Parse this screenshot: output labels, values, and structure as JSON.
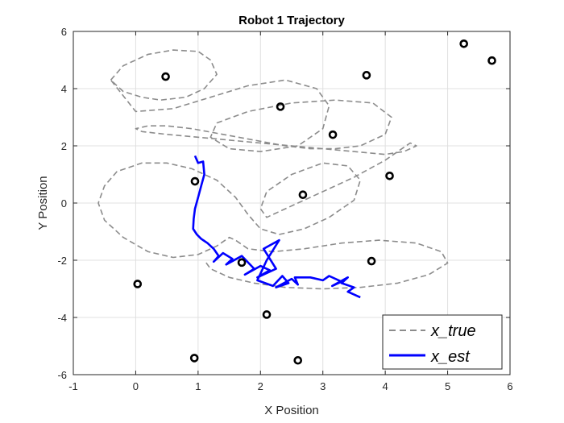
{
  "chart_data": {
    "type": "line",
    "title": "Robot 1 Trajectory",
    "xlabel": "X Position",
    "ylabel": "Y Position",
    "xlim": [
      -1,
      6
    ],
    "ylim": [
      -6,
      6
    ],
    "xticks": [
      -1,
      0,
      1,
      2,
      3,
      4,
      5,
      6
    ],
    "yticks": [
      -6,
      -4,
      -2,
      0,
      2,
      4,
      6
    ],
    "grid": true,
    "legend_position": "bottom-right",
    "colors": {
      "true": "#8c8c8c",
      "est": "#0000ff",
      "landmark": "#000000",
      "grid": "#e0e0e0",
      "axis": "#262626"
    },
    "landmarks": {
      "name": "landmarks",
      "x": [
        0.48,
        2.32,
        3.7,
        5.26,
        5.71,
        3.16,
        0.95,
        2.68,
        4.07,
        1.7,
        3.78,
        0.03,
        2.1,
        0.94,
        2.6
      ],
      "y": [
        4.42,
        3.37,
        4.47,
        5.57,
        4.98,
        2.39,
        0.76,
        0.29,
        0.95,
        -2.08,
        -2.03,
        -2.83,
        -3.9,
        -5.42,
        -5.5
      ]
    },
    "series": [
      {
        "name": "x_true",
        "style": "dashed",
        "x": [
          -0.4,
          -0.2,
          0.2,
          0.6,
          1.0,
          1.2,
          1.3,
          1.1,
          0.8,
          0.4,
          0.1,
          -0.2,
          -0.4,
          0.0,
          0.6,
          1.2,
          1.8,
          2.4,
          2.9,
          3.1,
          3.0,
          2.6,
          2.0,
          1.5,
          1.2,
          1.3,
          1.8,
          2.5,
          3.2,
          3.8,
          4.1,
          4.0,
          3.6,
          3.2,
          2.8,
          2.4,
          1.9,
          1.4,
          0.9,
          0.5,
          0.2,
          0.0,
          0.1,
          0.5,
          1.0,
          1.5,
          2.0,
          2.5,
          3.0,
          3.5,
          4.0,
          4.3,
          4.5,
          4.4,
          4.0,
          3.5,
          3.0,
          2.6,
          2.3,
          2.1,
          2.0,
          2.1,
          2.5,
          3.0,
          3.4,
          3.6,
          3.5,
          3.1,
          2.7,
          2.3,
          2.0,
          1.8,
          1.6,
          1.3,
          0.9,
          0.5,
          0.1,
          -0.3,
          -0.5,
          -0.6,
          -0.5,
          -0.2,
          0.2,
          0.6,
          1.0,
          1.3,
          1.5,
          1.6,
          1.8,
          2.2,
          2.7,
          3.3,
          3.9,
          4.5,
          4.9,
          5.0,
          4.7,
          4.2,
          3.6,
          3.0,
          2.4,
          1.9,
          1.5,
          1.2,
          1.1
        ],
        "y": [
          4.3,
          4.8,
          5.2,
          5.35,
          5.3,
          5.0,
          4.5,
          4.0,
          3.7,
          3.6,
          3.7,
          3.9,
          4.3,
          3.2,
          3.3,
          3.7,
          4.1,
          4.3,
          4.0,
          3.4,
          2.6,
          2.0,
          1.8,
          1.9,
          2.3,
          2.8,
          3.2,
          3.5,
          3.6,
          3.5,
          3.0,
          2.4,
          2.0,
          1.9,
          1.9,
          2.0,
          2.2,
          2.4,
          2.6,
          2.7,
          2.7,
          2.6,
          2.5,
          2.4,
          2.3,
          2.2,
          2.1,
          2.0,
          1.9,
          1.8,
          1.7,
          1.8,
          2.0,
          2.1,
          1.5,
          0.9,
          0.4,
          0.0,
          -0.3,
          -0.5,
          -0.2,
          0.4,
          1.0,
          1.4,
          1.3,
          0.8,
          0.1,
          -0.5,
          -0.9,
          -1.1,
          -0.9,
          -0.4,
          0.2,
          0.8,
          1.2,
          1.4,
          1.4,
          1.1,
          0.6,
          0.0,
          -0.6,
          -1.2,
          -1.7,
          -1.9,
          -1.8,
          -1.5,
          -1.2,
          -1.3,
          -1.6,
          -1.7,
          -1.6,
          -1.4,
          -1.3,
          -1.4,
          -1.7,
          -2.1,
          -2.5,
          -2.8,
          -2.95,
          -3.0,
          -2.95,
          -2.8,
          -2.6,
          -2.3,
          -2.0
        ]
      },
      {
        "name": "x_est",
        "style": "solid",
        "x": [
          0.95,
          1.0,
          1.08,
          1.1,
          1.05,
          1.0,
          0.95,
          0.93,
          0.92,
          0.98,
          1.05,
          1.15,
          1.25,
          1.33,
          1.25,
          1.4,
          1.55,
          1.45,
          1.7,
          1.9,
          1.75,
          2.0,
          2.15,
          1.95,
          2.25,
          2.05,
          2.3,
          2.1,
          1.95,
          2.2,
          2.35,
          2.45,
          2.25,
          2.5,
          2.6,
          2.55,
          2.8,
          3.0,
          3.1,
          3.3,
          3.15,
          3.4,
          3.3,
          3.5,
          3.4,
          3.6
        ],
        "y": [
          1.65,
          1.4,
          1.45,
          1.0,
          0.6,
          0.2,
          -0.2,
          -0.55,
          -0.9,
          -1.1,
          -1.25,
          -1.4,
          -1.6,
          -1.85,
          -2.05,
          -1.75,
          -1.95,
          -2.15,
          -1.85,
          -2.3,
          -2.5,
          -2.2,
          -2.35,
          -2.6,
          -2.3,
          -1.6,
          -1.3,
          -2.0,
          -2.7,
          -2.9,
          -2.55,
          -2.8,
          -2.95,
          -2.65,
          -2.85,
          -2.6,
          -2.6,
          -2.7,
          -2.55,
          -2.75,
          -2.9,
          -2.6,
          -2.8,
          -2.95,
          -3.1,
          -3.3
        ]
      }
    ]
  }
}
